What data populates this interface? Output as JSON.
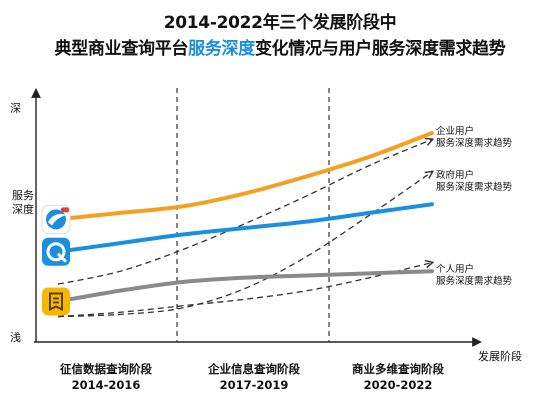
{
  "title": {
    "line1": "2014-2022年三个发展阶段中",
    "line2_prefix": "典型商业查询平台",
    "line2_highlight": "服务深度",
    "line2_suffix": "变化情况与用户服务深度需求趋势"
  },
  "colors": {
    "highlight": "#1a8fe0",
    "orange": "#f5a020",
    "blue": "#1a8fe0",
    "gray": "#8a8a8a",
    "dashed": "#333333",
    "axis": "#222222"
  },
  "chart_data": {
    "type": "line",
    "x_axis_label": "发展阶段",
    "y_axis_label_top": "深",
    "y_axis_label_mid": "服务深度",
    "y_axis_label_bottom": "浅",
    "stages": [
      {
        "name": "征信数据查询阶段",
        "years": "2014-2016"
      },
      {
        "name": "企业信息查询阶段",
        "years": "2017-2019"
      },
      {
        "name": "商业多维查询阶段",
        "years": "2020-2022"
      }
    ],
    "x": [
      0,
      0.5,
      1,
      1.5,
      2,
      2.5,
      3
    ],
    "y_range": [
      0,
      10
    ],
    "series": [
      {
        "color": "#f5a020",
        "icon": "orange-app-icon",
        "values": [
          5.4,
          5.7,
          6.0,
          6.6,
          7.4,
          8.3,
          9.4
        ]
      },
      {
        "color": "#1a8fe0",
        "icon": "blue-app-icon",
        "values": [
          3.9,
          4.3,
          4.7,
          5.0,
          5.3,
          5.7,
          6.1
        ]
      },
      {
        "color": "#8a8a8a",
        "icon": "yellow-app-icon",
        "values": [
          1.6,
          2.1,
          2.5,
          2.7,
          2.8,
          2.9,
          3.0
        ]
      }
    ],
    "demand_trends": [
      {
        "label_line1": "企业用户",
        "label_line2": "服务深度需求趋势",
        "values": [
          2.4,
          3.0,
          4.0,
          5.2,
          6.5,
          7.9,
          9.1
        ]
      },
      {
        "label_line1": "政府用户",
        "label_line2": "服务深度需求趋势",
        "values": [
          0.9,
          1.0,
          1.3,
          2.2,
          3.7,
          5.6,
          7.6
        ]
      },
      {
        "label_line1": "个人用户",
        "label_line2": "服务深度需求趋势",
        "values": [
          0.9,
          1.1,
          1.4,
          1.7,
          2.1,
          2.7,
          3.4
        ]
      }
    ]
  }
}
